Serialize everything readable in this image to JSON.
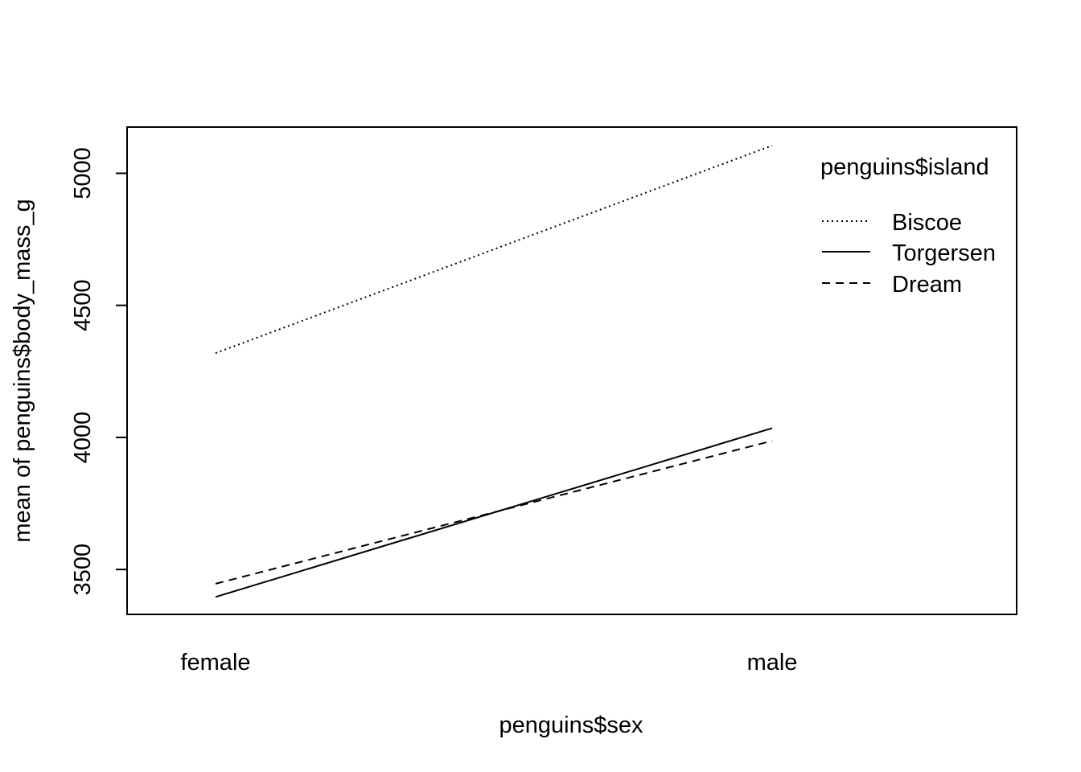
{
  "chart_data": {
    "type": "line",
    "title": "",
    "xlabel": "penguins$sex",
    "ylabel": "mean of  penguins$body_mass_g",
    "categories": [
      "female",
      "male"
    ],
    "yticks": [
      "3500",
      "4000",
      "4500",
      "5000"
    ],
    "ylim": [
      3330,
      5175
    ],
    "grid": false,
    "legend": {
      "title": "penguins$island",
      "placement": "top-right",
      "entries": [
        "Biscoe",
        "Torgersen",
        "Dream"
      ]
    },
    "series": [
      {
        "name": "Biscoe",
        "style": "dotted",
        "values": [
          4319,
          5105
        ]
      },
      {
        "name": "Torgersen",
        "style": "solid",
        "values": [
          3396,
          4035
        ]
      },
      {
        "name": "Dream",
        "style": "dashed",
        "values": [
          3446,
          3987
        ]
      }
    ]
  }
}
